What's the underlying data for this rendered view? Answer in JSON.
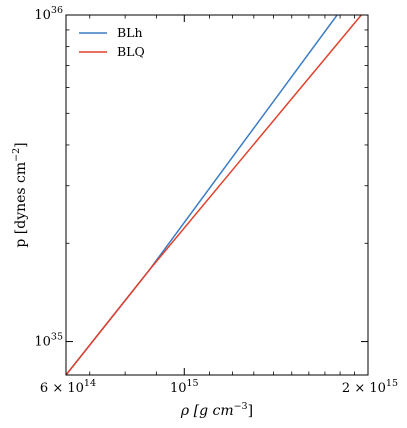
{
  "chart_data": {
    "type": "line",
    "xscale": "log",
    "yscale": "log",
    "xlim": [
      640000000000000.0,
      2000000000000000.0
    ],
    "ylim": [
      7.9e+34,
      1e+36
    ],
    "xlabel": {
      "main": "ρ [g cm",
      "exp": "−3",
      "tail": "]"
    },
    "ylabel": {
      "main": "p [dynes cm",
      "exp": "−2",
      "tail": "]"
    },
    "xticks": [
      {
        "value": 600000000000000.0,
        "mant": "6 × 10",
        "exp": "14",
        "anchor": "end"
      },
      {
        "value": 1000000000000000.0,
        "mant": "10",
        "exp": "15",
        "anchor": "middle"
      },
      {
        "value": 2000000000000000.0,
        "mant": "2 × 10",
        "exp": "15",
        "anchor": "end"
      }
    ],
    "yticks": [
      {
        "value": 1e+35,
        "mant": "10",
        "exp": "35"
      },
      {
        "value": 1e+36,
        "mant": "10",
        "exp": "36"
      }
    ],
    "xminor": [
      700000000000000.0,
      800000000000000.0,
      900000000000000.0,
      1100000000000000.0,
      1200000000000000.0,
      1300000000000000.0,
      1400000000000000.0,
      1500000000000000.0,
      1600000000000000.0,
      1700000000000000.0,
      1800000000000000.0,
      1900000000000000.0
    ],
    "yminor": [
      2e+35,
      3e+35,
      4e+35,
      5e+35,
      6e+35,
      7e+35,
      8e+35,
      9e+35
    ],
    "legend_position": "top-left",
    "series": [
      {
        "name": "BLh",
        "color": "#3b7cc4",
        "x": [
          640000000000000.0,
          875000000000000.0,
          1780000000000000.0
        ],
        "y": [
          7.9e+34,
          1.65e+35,
          1e+36
        ]
      },
      {
        "name": "BLQ",
        "color": "#e0412c",
        "x": [
          640000000000000.0,
          875000000000000.0,
          1950000000000000.0
        ],
        "y": [
          7.9e+34,
          1.65e+35,
          1e+36
        ]
      }
    ]
  }
}
